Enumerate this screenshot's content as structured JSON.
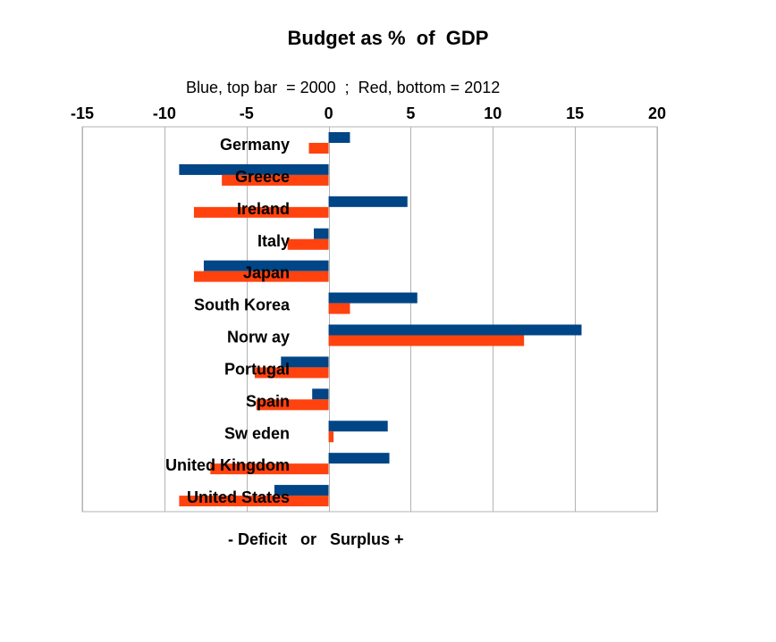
{
  "chart_data": {
    "type": "bar",
    "orientation": "horizontal",
    "title": "Budget as %  of  GDP",
    "subtitle": "Blue, top bar  = 2000  ;  Red, bottom = 2012",
    "xlabel": "- Deficit   or   Surplus +",
    "ylabel": "",
    "xlim": [
      -15,
      20
    ],
    "xticks": [
      -15,
      -10,
      -5,
      0,
      5,
      10,
      15,
      20
    ],
    "xtick_position": "top",
    "grid": "vertical major gridlines",
    "legend": "none",
    "categories": [
      "Germany",
      "Greece",
      "Ireland",
      "Italy",
      "Japan",
      "South Korea",
      "Norw ay",
      "Portugal",
      "Spain",
      "Sw eden",
      "United Kingdom",
      "United States"
    ],
    "series": [
      {
        "color": "#004586",
        "values": [
          1.3,
          -9.1,
          4.8,
          -0.9,
          -7.6,
          5.4,
          15.4,
          -2.9,
          -1.0,
          3.6,
          3.7,
          -3.3
        ]
      },
      {
        "color": "#ff420e",
        "values": [
          -1.2,
          -6.5,
          -8.2,
          -2.5,
          -8.2,
          1.3,
          11.9,
          -4.5,
          -4.4,
          0.3,
          -7.2,
          -9.1
        ]
      }
    ]
  }
}
